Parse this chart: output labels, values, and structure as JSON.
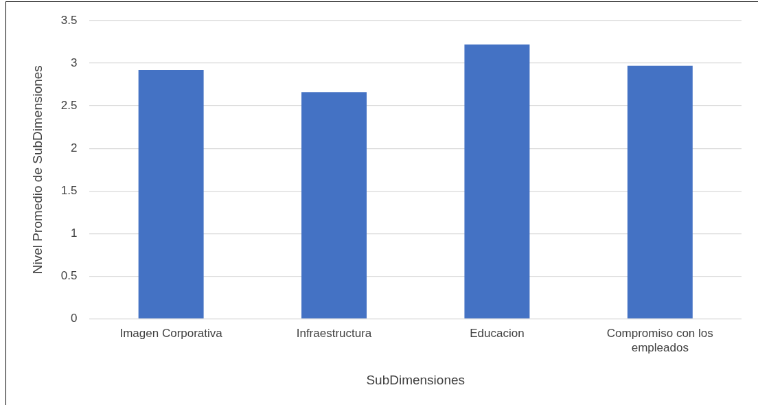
{
  "chart_data": {
    "type": "bar",
    "xlabel": "SubDimensiones",
    "ylabel": "Nivel Promedio de SubDimensiones",
    "categories": [
      "Imagen Corporativa",
      "Infraestructura",
      "Educacion",
      "Compromiso con los empleados"
    ],
    "values": [
      2.92,
      2.66,
      3.22,
      2.97
    ],
    "color": "#4472c4",
    "ylim": [
      0,
      3.5
    ],
    "yticks": [
      0,
      0.5,
      1,
      1.5,
      2,
      2.5,
      3,
      3.5
    ],
    "grid": "y",
    "legend": false
  }
}
